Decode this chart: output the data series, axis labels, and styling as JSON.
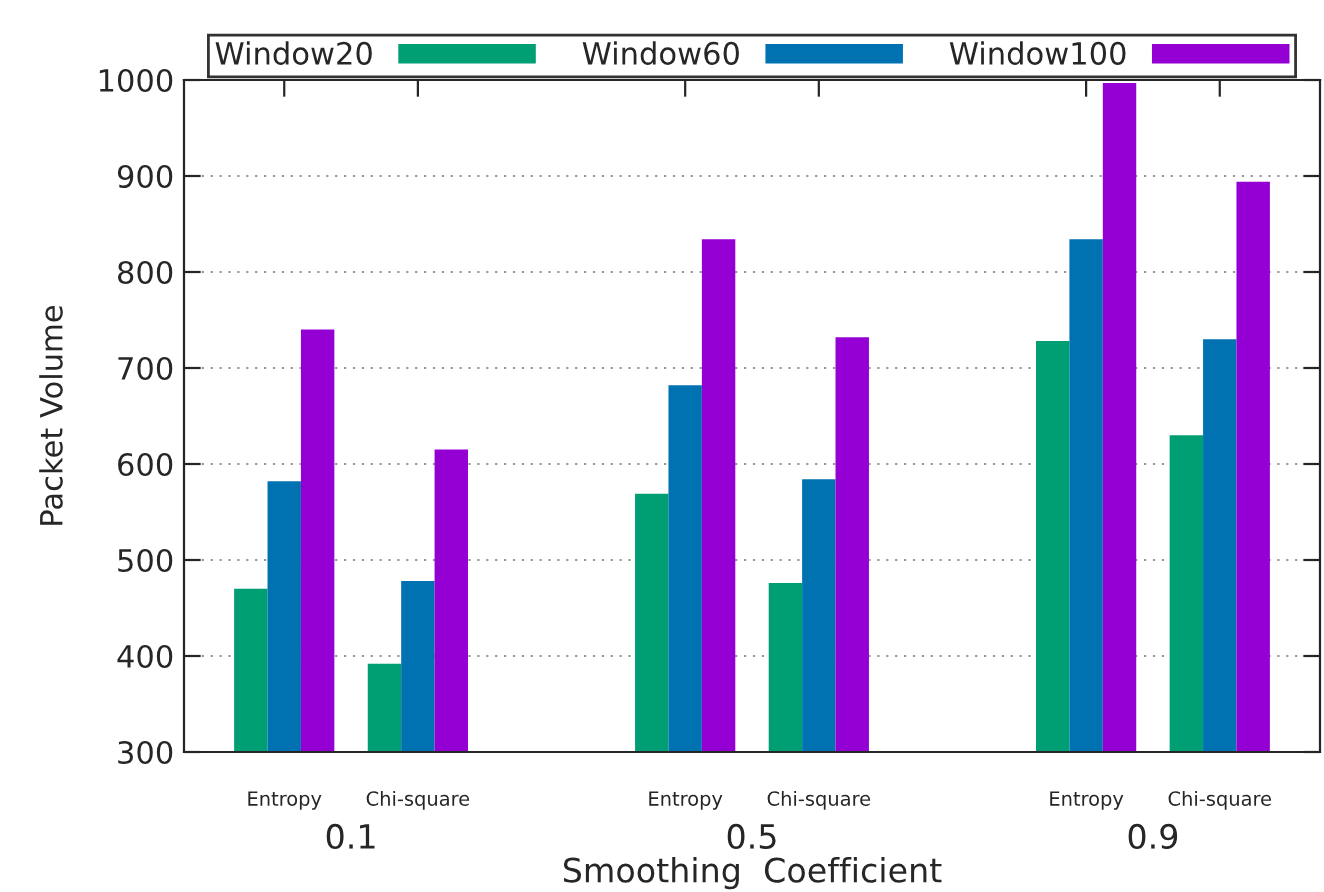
{
  "chart_data": {
    "type": "bar",
    "xlabel": "Smoothing  Coefficient",
    "ylabel": "Packet Volume",
    "categories": [
      "Entropy",
      "Chi-square",
      null,
      "Entropy",
      "Chi-square",
      null,
      "Entropy",
      "Chi-square"
    ],
    "annotations": [
      "0.1",
      "0.5",
      "0.9"
    ],
    "series": [
      {
        "name": "Window20",
        "color": "#009e73",
        "values": [
          470,
          392,
          null,
          569,
          476,
          null,
          728,
          630
        ]
      },
      {
        "name": "Window60",
        "color": "#0072b2",
        "values": [
          582,
          478,
          null,
          682,
          584,
          null,
          834,
          730
        ]
      },
      {
        "name": "Window100",
        "color": "#9400d3",
        "values": [
          740,
          615,
          null,
          834,
          732,
          null,
          997,
          894
        ]
      }
    ],
    "ylim": [
      300,
      1000
    ],
    "yticks": [
      300,
      400,
      500,
      600,
      700,
      800,
      900,
      1000
    ],
    "grid": "y",
    "legend": "top"
  }
}
